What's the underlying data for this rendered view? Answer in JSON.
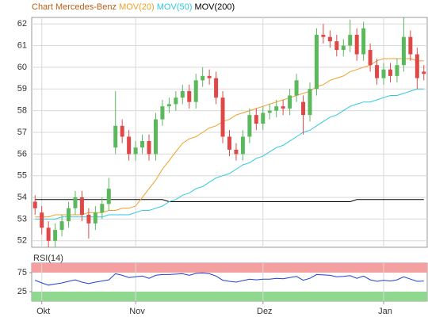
{
  "chart_data": [
    {
      "type": "candlestick",
      "title": "Chart Mercedes-Benz",
      "title_color": "#b8601a",
      "categories": [
        null,
        "Okt",
        null,
        null,
        null,
        null,
        null,
        null,
        null,
        null,
        null,
        null,
        null,
        null,
        null,
        "Nov",
        null,
        null,
        null,
        null,
        null,
        null,
        null,
        null,
        null,
        null,
        null,
        null,
        null,
        null,
        null,
        null,
        null,
        null,
        "Dez",
        null,
        null,
        null,
        null,
        null,
        null,
        null,
        null,
        null,
        null,
        null,
        null,
        null,
        null,
        null,
        null,
        null,
        "Jan",
        null,
        null,
        null,
        null,
        null,
        null
      ],
      "open": [
        53.8,
        53.3,
        52.6,
        52.0,
        52.5,
        52.9,
        53.5,
        54.0,
        53.2,
        52.8,
        53.3,
        53.7,
        56.3,
        57.3,
        56.8,
        56.0,
        56.3,
        56.6,
        56.0,
        57.6,
        58.2,
        58.3,
        58.6,
        58.9,
        58.4,
        59.4,
        59.6,
        59.5,
        58.6,
        56.8,
        56.2,
        56.0,
        56.8,
        57.8,
        57.4,
        57.9,
        58.0,
        58.2,
        58.1,
        58.7,
        58.4,
        57.8,
        59.0,
        61.5,
        61.4,
        61.2,
        60.8,
        61.0,
        61.5,
        60.6,
        60.8,
        60.1,
        59.5,
        59.9,
        59.6,
        60.1,
        61.4,
        60.6,
        59.8
      ],
      "high": [
        54.1,
        53.6,
        52.9,
        52.8,
        53.2,
        53.8,
        54.3,
        54.3,
        53.5,
        53.6,
        54.0,
        54.9,
        58.9,
        57.6,
        57.1,
        56.6,
        56.9,
        56.9,
        57.9,
        58.5,
        58.6,
        58.9,
        59.2,
        59.2,
        59.7,
        60.0,
        59.9,
        59.8,
        58.9,
        57.1,
        56.5,
        57.1,
        58.1,
        58.1,
        58.2,
        58.3,
        58.5,
        58.5,
        59.0,
        59.7,
        58.7,
        59.3,
        61.8,
        62.0,
        61.7,
        61.5,
        61.3,
        62.2,
        61.8,
        62.1,
        61.1,
        60.4,
        60.2,
        60.2,
        60.4,
        62.3,
        61.7,
        60.9,
        60.1
      ],
      "low": [
        53.2,
        52.3,
        51.7,
        51.7,
        52.2,
        52.6,
        53.2,
        52.9,
        52.1,
        52.5,
        53.0,
        53.4,
        56.0,
        56.5,
        55.7,
        55.7,
        56.0,
        55.7,
        55.7,
        57.3,
        57.9,
        58.0,
        58.3,
        58.1,
        58.1,
        59.1,
        59.2,
        58.3,
        56.5,
        55.9,
        55.7,
        55.7,
        56.5,
        57.1,
        57.1,
        57.6,
        57.7,
        57.8,
        57.8,
        58.4,
        56.9,
        57.5,
        58.7,
        61.1,
        60.9,
        60.5,
        60.5,
        60.7,
        60.3,
        60.3,
        59.8,
        59.2,
        59.2,
        59.3,
        59.3,
        59.8,
        60.3,
        59.0,
        59.4
      ],
      "close": [
        53.5,
        52.6,
        52.0,
        52.5,
        52.9,
        53.5,
        54.0,
        53.2,
        52.8,
        53.3,
        53.7,
        54.4,
        57.3,
        56.8,
        56.0,
        56.3,
        56.6,
        56.0,
        57.6,
        58.2,
        58.3,
        58.6,
        58.9,
        58.4,
        59.4,
        59.6,
        59.5,
        58.6,
        56.8,
        56.2,
        56.0,
        56.8,
        57.8,
        57.4,
        57.9,
        58.0,
        58.2,
        58.1,
        58.7,
        59.4,
        57.8,
        59.0,
        61.5,
        61.4,
        61.2,
        60.8,
        61.0,
        61.5,
        60.6,
        61.8,
        60.1,
        59.5,
        59.9,
        59.6,
        60.1,
        61.4,
        60.6,
        59.5,
        59.7
      ],
      "up_color": "#5cb85c",
      "down_color": "#e04848",
      "series": [
        {
          "name": "MOV(20)",
          "color": "#f0a028",
          "values": [
            53.1,
            53.1,
            53.1,
            53.2,
            53.2,
            53.2,
            53.2,
            53.2,
            53.3,
            53.3,
            53.3,
            53.4,
            53.4,
            53.5,
            53.5,
            53.6,
            54.0,
            54.4,
            54.8,
            55.3,
            55.7,
            56.1,
            56.5,
            56.7,
            56.8,
            57.0,
            57.2,
            57.3,
            57.5,
            57.6,
            57.8,
            57.9,
            58.0,
            58.1,
            58.2,
            58.3,
            58.4,
            58.5,
            58.6,
            58.7,
            58.8,
            58.9,
            59.1,
            59.2,
            59.4,
            59.5,
            59.6,
            59.8,
            59.9,
            60.0,
            60.1,
            60.3,
            60.4,
            60.4,
            60.4,
            60.4,
            60.4,
            60.3,
            60.3
          ]
        },
        {
          "name": "MOV(50)",
          "color": "#30c8e0",
          "values": [
            53.0,
            53.0,
            53.0,
            53.0,
            53.1,
            53.1,
            53.1,
            53.1,
            53.1,
            53.1,
            53.1,
            53.2,
            53.2,
            53.2,
            53.2,
            53.3,
            53.4,
            53.4,
            53.5,
            53.6,
            53.8,
            53.9,
            54.1,
            54.2,
            54.4,
            54.5,
            54.7,
            54.9,
            55.0,
            55.1,
            55.3,
            55.5,
            55.6,
            55.8,
            55.9,
            56.1,
            56.3,
            56.4,
            56.6,
            56.8,
            57.0,
            57.1,
            57.3,
            57.5,
            57.7,
            57.8,
            58.0,
            58.2,
            58.3,
            58.4,
            58.4,
            58.5,
            58.6,
            58.7,
            58.7,
            58.8,
            58.9,
            59.0,
            59.0
          ]
        },
        {
          "name": "MOV(200)",
          "color": "#000000",
          "values": [
            53.9,
            53.9,
            53.9,
            53.9,
            53.9,
            53.9,
            53.9,
            53.9,
            53.9,
            53.9,
            53.9,
            53.9,
            53.9,
            53.9,
            53.9,
            53.9,
            53.9,
            53.9,
            53.9,
            53.9,
            53.8,
            53.8,
            53.8,
            53.8,
            53.8,
            53.8,
            53.8,
            53.8,
            53.8,
            53.8,
            53.8,
            53.8,
            53.8,
            53.8,
            53.8,
            53.8,
            53.8,
            53.8,
            53.8,
            53.8,
            53.8,
            53.8,
            53.8,
            53.8,
            53.8,
            53.8,
            53.8,
            53.8,
            53.9,
            53.9,
            53.9,
            53.9,
            53.9,
            53.9,
            53.9,
            53.9,
            53.9,
            53.9,
            53.9
          ]
        }
      ],
      "ylim": [
        51.7,
        62.3
      ],
      "yticks": [
        52,
        53,
        54,
        55,
        56,
        57,
        58,
        59,
        60,
        61,
        62
      ],
      "grid": true
    },
    {
      "type": "line",
      "title": "RSI(14)",
      "series": [
        {
          "name": "RSI(14)",
          "color": "#2040d0",
          "values": [
            55,
            48,
            42,
            45,
            48,
            52,
            56,
            50,
            46,
            50,
            53,
            56,
            72,
            68,
            62,
            64,
            66,
            60,
            68,
            70,
            70,
            71,
            72,
            68,
            73,
            74,
            72,
            66,
            55,
            52,
            50,
            54,
            58,
            56,
            58,
            58,
            60,
            59,
            62,
            65,
            55,
            60,
            70,
            69,
            68,
            64,
            65,
            67,
            60,
            66,
            56,
            52,
            55,
            53,
            56,
            64,
            58,
            52,
            53
          ]
        }
      ],
      "ylim": [
        0,
        100
      ],
      "yticks": [
        25,
        75
      ],
      "upper_zone_color": "#f4a0a0",
      "lower_zone_color": "#90d890"
    }
  ]
}
